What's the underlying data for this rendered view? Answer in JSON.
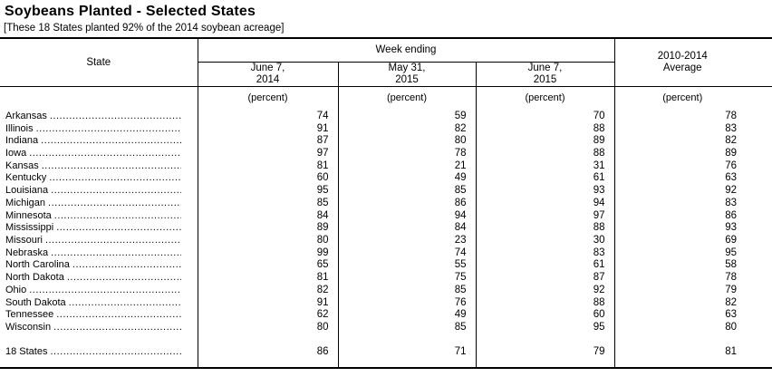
{
  "title": "Soybeans Planted - Selected States",
  "subtitle": "[These 18 States planted 92% of the 2014 soybean acreage]",
  "table": {
    "state_header": "State",
    "week_ending_header": "Week ending",
    "average_header": "2010-2014\nAverage",
    "date_headers": [
      "June 7,\n2014",
      "May 31,\n2015",
      "June 7,\n2015"
    ],
    "unit_label": "(percent)",
    "rows": [
      {
        "state": "Arkansas",
        "values": [
          74,
          59,
          70,
          78
        ]
      },
      {
        "state": "Illinois",
        "values": [
          91,
          82,
          88,
          83
        ]
      },
      {
        "state": "Indiana",
        "values": [
          87,
          80,
          89,
          82
        ]
      },
      {
        "state": "Iowa",
        "values": [
          97,
          78,
          88,
          89
        ]
      },
      {
        "state": "Kansas",
        "values": [
          81,
          21,
          31,
          76
        ]
      },
      {
        "state": "Kentucky",
        "values": [
          60,
          49,
          61,
          63
        ]
      },
      {
        "state": "Louisiana",
        "values": [
          95,
          85,
          93,
          92
        ]
      },
      {
        "state": "Michigan",
        "values": [
          85,
          86,
          94,
          83
        ]
      },
      {
        "state": "Minnesota",
        "values": [
          84,
          94,
          97,
          86
        ]
      },
      {
        "state": "Mississippi",
        "values": [
          89,
          84,
          88,
          93
        ]
      },
      {
        "state": "Missouri",
        "values": [
          80,
          23,
          30,
          69
        ]
      },
      {
        "state": "Nebraska",
        "values": [
          99,
          74,
          83,
          95
        ]
      },
      {
        "state": "North Carolina",
        "values": [
          65,
          55,
          61,
          58
        ]
      },
      {
        "state": "North Dakota",
        "values": [
          81,
          75,
          87,
          78
        ]
      },
      {
        "state": "Ohio",
        "values": [
          82,
          85,
          92,
          79
        ]
      },
      {
        "state": "South Dakota",
        "values": [
          91,
          76,
          88,
          82
        ]
      },
      {
        "state": "Tennessee",
        "values": [
          62,
          49,
          60,
          63
        ]
      },
      {
        "state": "Wisconsin",
        "values": [
          80,
          85,
          95,
          80
        ]
      }
    ],
    "total_row": {
      "state": "18 States",
      "values": [
        86,
        71,
        79,
        81
      ]
    }
  }
}
